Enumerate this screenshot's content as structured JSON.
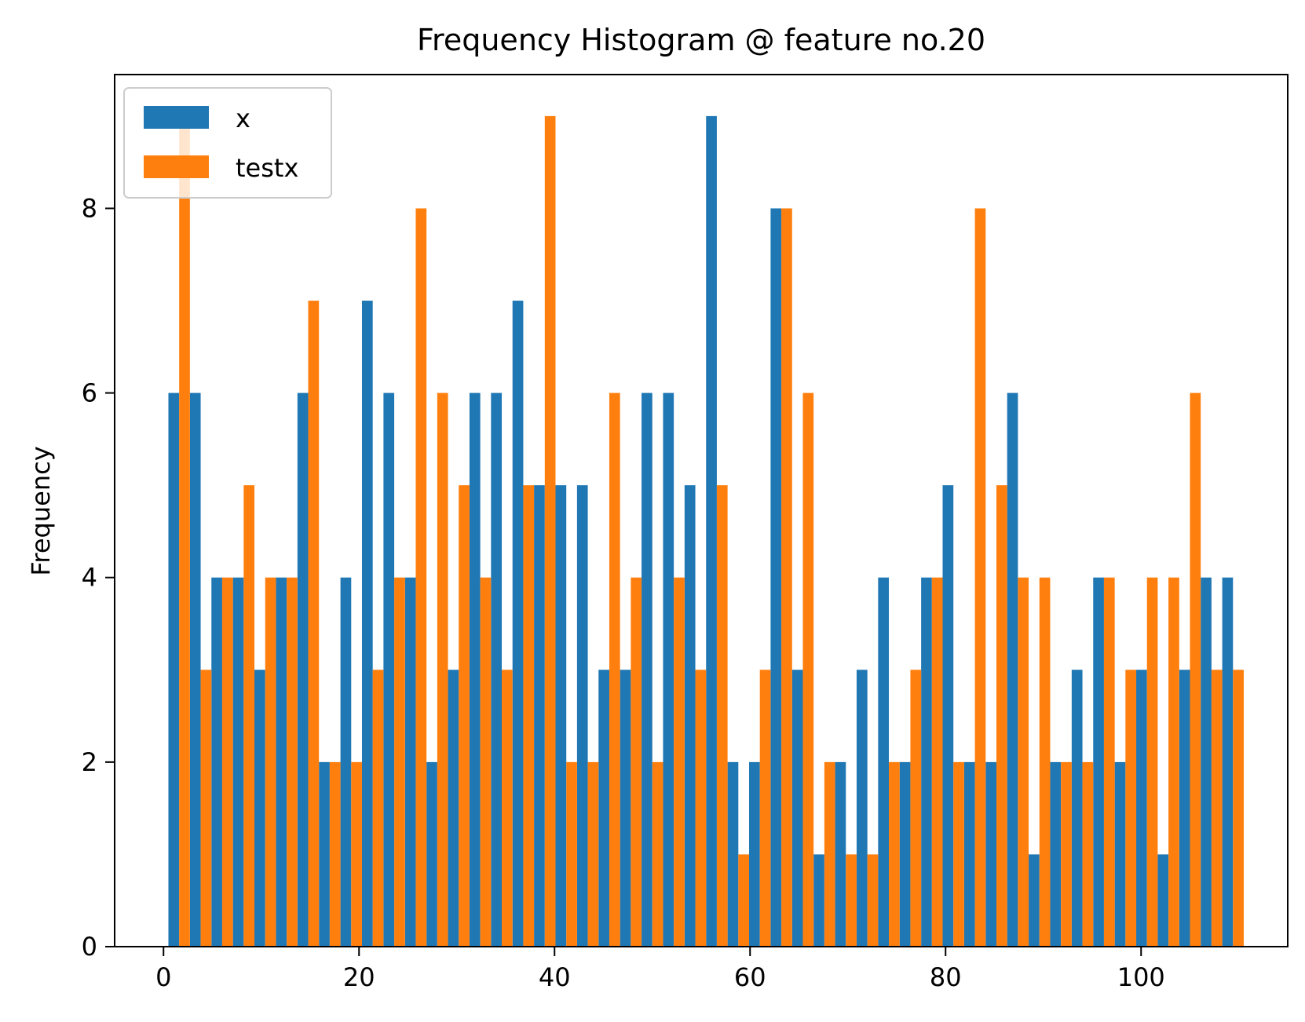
{
  "chart_data": {
    "type": "bar",
    "title": "Frequency Histogram @ feature no.20",
    "xlabel": "",
    "ylabel": "Frequency",
    "xlim": [
      -5,
      115
    ],
    "ylim": [
      0,
      9.45
    ],
    "x_ticks": [
      0,
      20,
      40,
      60,
      80,
      100
    ],
    "y_ticks": [
      0,
      2,
      4,
      6,
      8
    ],
    "legend_position": "top-left",
    "grid": false,
    "bin_start": 0.5,
    "bin_width": 2.2,
    "series": [
      {
        "name": "x",
        "color": "#1f77b4",
        "values": [
          6,
          6,
          4,
          4,
          3,
          4,
          6,
          2,
          4,
          7,
          6,
          4,
          2,
          3,
          6,
          6,
          7,
          5,
          5,
          5,
          3,
          3,
          6,
          6,
          5,
          9,
          2,
          2,
          8,
          3,
          1,
          2,
          3,
          4,
          2,
          4,
          5,
          2,
          2,
          6,
          1,
          2,
          3,
          4,
          2,
          3,
          1,
          3,
          4,
          4
        ]
      },
      {
        "name": "testx",
        "color": "#ff7f0e",
        "values": [
          9,
          3,
          4,
          5,
          4,
          4,
          7,
          2,
          2,
          3,
          4,
          8,
          6,
          5,
          4,
          3,
          5,
          9,
          2,
          2,
          6,
          4,
          2,
          4,
          3,
          5,
          1,
          3,
          8,
          6,
          2,
          1,
          1,
          2,
          3,
          4,
          2,
          8,
          5,
          4,
          4,
          2,
          2,
          4,
          3,
          4,
          4,
          6,
          3,
          3
        ]
      }
    ]
  }
}
